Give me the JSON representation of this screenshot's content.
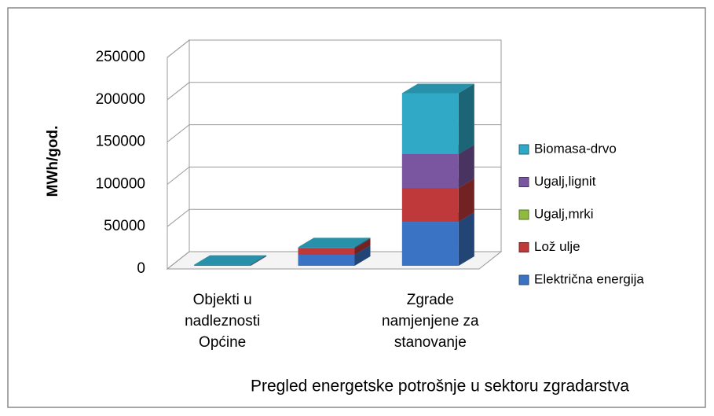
{
  "chart_data": {
    "type": "bar3d_stacked",
    "title": "Pregled energetske potrošnje u sektoru zgradarstva",
    "y_label": "MWh/god.",
    "categories": [
      "Objekti u nadleznosti Općine",
      null,
      "Zgrade namjenjene za stanovanje"
    ],
    "series": [
      {
        "name": "Električna energija",
        "color": "#3a73c4",
        "values": [
          500,
          13000,
          52000
        ]
      },
      {
        "name": "Lož ulje",
        "color": "#c0393a",
        "values": [
          300,
          8000,
          40000
        ]
      },
      {
        "name": "Ugalj,mrki",
        "color": "#8fba3e",
        "values": [
          0,
          0,
          0
        ]
      },
      {
        "name": "Ugalj,lignit",
        "color": "#7a55a0",
        "values": [
          0,
          0,
          40000
        ]
      },
      {
        "name": "Biomasa-drvo",
        "color": "#2fa9c6",
        "values": [
          500,
          1000,
          72000
        ]
      }
    ],
    "ylim": [
      0,
      250000
    ],
    "yticks": [
      0,
      50000,
      100000,
      150000,
      200000,
      250000
    ],
    "grid": true
  }
}
